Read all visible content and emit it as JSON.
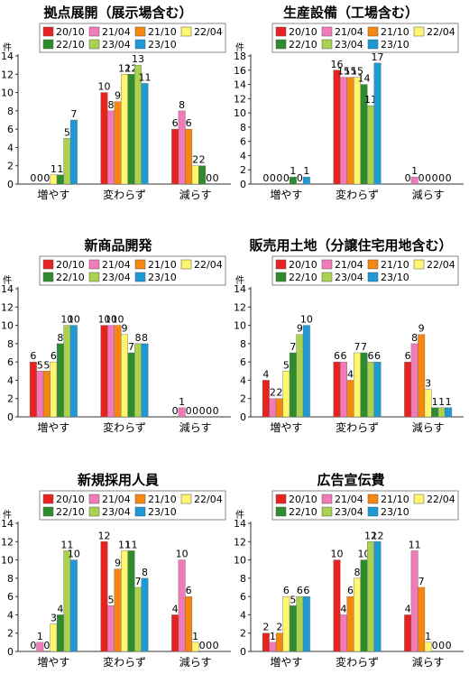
{
  "legend": [
    "20/10",
    "21/04",
    "21/10",
    "22/04",
    "22/10",
    "23/04",
    "23/10"
  ],
  "colors": [
    "#e8221f",
    "#f27ab8",
    "#f7860f",
    "#fff56e",
    "#2e8c2e",
    "#a8d24f",
    "#1d9ad6"
  ],
  "unit": "件",
  "chart_data": [
    {
      "type": "bar",
      "title": "拠点展開（展示場含む）",
      "categories": [
        "増やす",
        "変わらず",
        "減らす"
      ],
      "ylim": [
        0,
        14
      ],
      "yticks": [
        0,
        2,
        4,
        6,
        8,
        10,
        12,
        14
      ],
      "series": [
        {
          "name": "20/10",
          "values": [
            0,
            10,
            6
          ]
        },
        {
          "name": "21/04",
          "values": [
            0,
            8,
            8
          ]
        },
        {
          "name": "21/10",
          "values": [
            0,
            9,
            6
          ]
        },
        {
          "name": "22/04",
          "values": [
            1,
            12,
            2
          ]
        },
        {
          "name": "22/10",
          "values": [
            1,
            12,
            2
          ]
        },
        {
          "name": "23/04",
          "values": [
            5,
            13,
            0
          ]
        },
        {
          "name": "23/10",
          "values": [
            7,
            11,
            0
          ]
        }
      ]
    },
    {
      "type": "bar",
      "title": "生産設備（工場含む）",
      "categories": [
        "増やす",
        "変わらず",
        "減らす"
      ],
      "ylim": [
        0,
        18
      ],
      "yticks": [
        0,
        2,
        4,
        6,
        8,
        10,
        12,
        14,
        16,
        18
      ],
      "series": [
        {
          "name": "20/10",
          "values": [
            0,
            16,
            0
          ]
        },
        {
          "name": "21/04",
          "values": [
            0,
            15,
            1
          ]
        },
        {
          "name": "21/10",
          "values": [
            0,
            15,
            0
          ]
        },
        {
          "name": "22/04",
          "values": [
            0,
            15,
            0
          ]
        },
        {
          "name": "22/10",
          "values": [
            1,
            14,
            0
          ]
        },
        {
          "name": "23/04",
          "values": [
            0,
            11,
            0
          ]
        },
        {
          "name": "23/10",
          "values": [
            1,
            17,
            0
          ]
        }
      ]
    },
    {
      "type": "bar",
      "title": "新商品開発",
      "categories": [
        "増やす",
        "変わらず",
        "減らす"
      ],
      "ylim": [
        0,
        14
      ],
      "yticks": [
        0,
        2,
        4,
        6,
        8,
        10,
        12,
        14
      ],
      "series": [
        {
          "name": "20/10",
          "values": [
            6,
            10,
            0
          ]
        },
        {
          "name": "21/04",
          "values": [
            5,
            10,
            1
          ]
        },
        {
          "name": "21/10",
          "values": [
            5,
            10,
            0
          ]
        },
        {
          "name": "22/04",
          "values": [
            6,
            9,
            0
          ]
        },
        {
          "name": "22/10",
          "values": [
            8,
            7,
            0
          ]
        },
        {
          "name": "23/04",
          "values": [
            10,
            8,
            0
          ]
        },
        {
          "name": "23/10",
          "values": [
            10,
            8,
            0
          ]
        }
      ]
    },
    {
      "type": "bar",
      "title": "販売用土地（分譲住宅用地含む）",
      "categories": [
        "増やす",
        "変わらず",
        "減らす"
      ],
      "ylim": [
        0,
        14
      ],
      "yticks": [
        0,
        2,
        4,
        6,
        8,
        10,
        12,
        14
      ],
      "series": [
        {
          "name": "20/10",
          "values": [
            4,
            6,
            6
          ]
        },
        {
          "name": "21/04",
          "values": [
            2,
            6,
            8
          ]
        },
        {
          "name": "21/10",
          "values": [
            2,
            4,
            9
          ]
        },
        {
          "name": "22/04",
          "values": [
            5,
            7,
            3
          ]
        },
        {
          "name": "22/10",
          "values": [
            7,
            7,
            1
          ]
        },
        {
          "name": "23/04",
          "values": [
            9,
            6,
            1
          ]
        },
        {
          "name": "23/10",
          "values": [
            10,
            6,
            1
          ]
        }
      ]
    },
    {
      "type": "bar",
      "title": "新規採用人員",
      "categories": [
        "増やす",
        "変わらず",
        "減らす"
      ],
      "ylim": [
        0,
        14
      ],
      "yticks": [
        0,
        2,
        4,
        6,
        8,
        10,
        12,
        14
      ],
      "series": [
        {
          "name": "20/10",
          "values": [
            0,
            12,
            4
          ]
        },
        {
          "name": "21/04",
          "values": [
            1,
            5,
            10
          ]
        },
        {
          "name": "21/10",
          "values": [
            0,
            9,
            6
          ]
        },
        {
          "name": "22/04",
          "values": [
            3,
            11,
            1
          ]
        },
        {
          "name": "22/10",
          "values": [
            4,
            11,
            0
          ]
        },
        {
          "name": "23/04",
          "values": [
            11,
            7,
            0
          ]
        },
        {
          "name": "23/10",
          "values": [
            10,
            8,
            0
          ]
        }
      ]
    },
    {
      "type": "bar",
      "title": "広告宣伝費",
      "categories": [
        "増やす",
        "変わらず",
        "減らす"
      ],
      "ylim": [
        0,
        14
      ],
      "yticks": [
        0,
        2,
        4,
        6,
        8,
        10,
        12,
        14
      ],
      "series": [
        {
          "name": "20/10",
          "values": [
            2,
            10,
            4
          ]
        },
        {
          "name": "21/04",
          "values": [
            1,
            4,
            11
          ]
        },
        {
          "name": "21/10",
          "values": [
            2,
            6,
            7
          ]
        },
        {
          "name": "22/04",
          "values": [
            6,
            8,
            1
          ]
        },
        {
          "name": "22/10",
          "values": [
            5,
            10,
            0
          ]
        },
        {
          "name": "23/04",
          "values": [
            6,
            12,
            0
          ]
        },
        {
          "name": "23/10",
          "values": [
            6,
            12,
            0
          ]
        }
      ]
    }
  ]
}
